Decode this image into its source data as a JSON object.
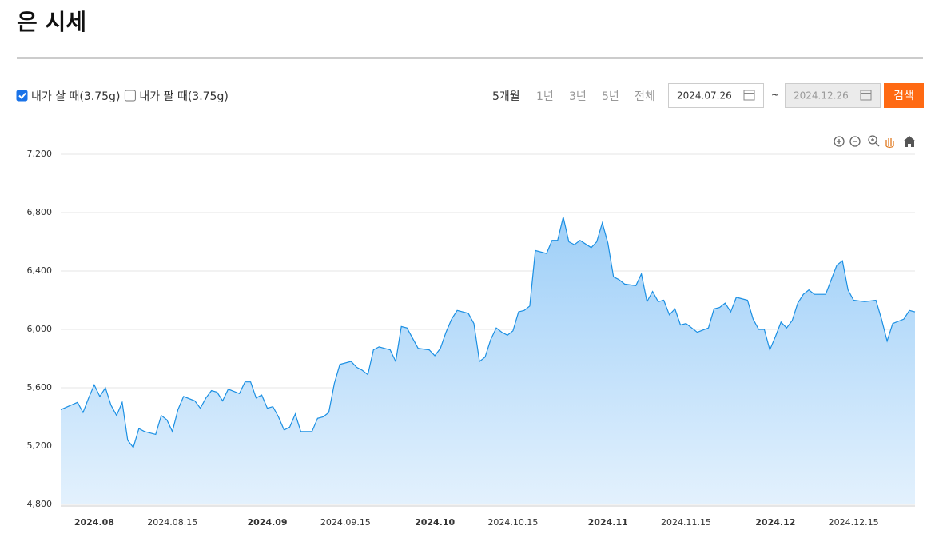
{
  "header": {
    "title": "은 시세"
  },
  "filters": [
    {
      "label": "내가 살 때(3.75g)",
      "checked": true
    },
    {
      "label": "내가 팔 때(3.75g)",
      "checked": false
    }
  ],
  "periods": [
    {
      "label": "5개월",
      "active": true
    },
    {
      "label": "1년",
      "active": false
    },
    {
      "label": "3년",
      "active": false
    },
    {
      "label": "5년",
      "active": false
    },
    {
      "label": "전체",
      "active": false
    }
  ],
  "date_range": {
    "from": "2024.07.26",
    "separator": "~",
    "to": "2024.12.26",
    "button": "검색"
  },
  "chart_data": {
    "type": "area",
    "grid": true,
    "xlim": [
      "2024.07.26",
      "2024.12.26"
    ],
    "xticks": [
      {
        "value": "2024.08.01",
        "label": "2024.08"
      },
      "2024.08.15",
      {
        "value": "2024.09.01",
        "label": "2024.09"
      },
      "2024.09.15",
      {
        "value": "2024.10.01",
        "label": "2024.10"
      },
      "2024.10.15",
      {
        "value": "2024.11.01",
        "label": "2024.11"
      },
      "2024.11.15",
      {
        "value": "2024.12.01",
        "label": "2024.12"
      },
      "2024.12.15"
    ],
    "ylim": [
      4800,
      7200
    ],
    "yticks": [
      {
        "value": 4800,
        "label": "4,800"
      },
      {
        "value": 5200,
        "label": "5,200"
      },
      {
        "value": 5600,
        "label": "5,600"
      },
      {
        "value": 6000,
        "label": "6,000"
      },
      {
        "value": 6400,
        "label": "6,400"
      },
      {
        "value": 6800,
        "label": "6,800"
      },
      {
        "value": 7200,
        "label": "7,200"
      }
    ],
    "x": [
      "2024.07.26",
      "2024.07.29",
      "2024.07.30",
      "2024.07.31",
      "2024.08.01",
      "2024.08.02",
      "2024.08.03",
      "2024.08.04",
      "2024.08.05",
      "2024.08.06",
      "2024.08.07",
      "2024.08.08",
      "2024.08.09",
      "2024.08.10",
      "2024.08.12",
      "2024.08.13",
      "2024.08.14",
      "2024.08.15",
      "2024.08.16",
      "2024.08.17",
      "2024.08.19",
      "2024.08.20",
      "2024.08.21",
      "2024.08.22",
      "2024.08.23",
      "2024.08.24",
      "2024.08.25",
      "2024.08.27",
      "2024.08.28",
      "2024.08.29",
      "2024.08.30",
      "2024.08.31",
      "2024.09.01",
      "2024.09.02",
      "2024.09.03",
      "2024.09.04",
      "2024.09.05",
      "2024.09.06",
      "2024.09.07",
      "2024.09.09",
      "2024.09.10",
      "2024.09.11",
      "2024.09.12",
      "2024.09.13",
      "2024.09.14",
      "2024.09.16",
      "2024.09.17",
      "2024.09.18",
      "2024.09.19",
      "2024.09.20",
      "2024.09.21",
      "2024.09.23",
      "2024.09.24",
      "2024.09.25",
      "2024.09.26",
      "2024.09.28",
      "2024.09.30",
      "2024.10.01",
      "2024.10.02",
      "2024.10.03",
      "2024.10.04",
      "2024.10.05",
      "2024.10.07",
      "2024.10.08",
      "2024.10.09",
      "2024.10.10",
      "2024.10.11",
      "2024.10.12",
      "2024.10.13",
      "2024.10.14",
      "2024.10.15",
      "2024.10.16",
      "2024.10.17",
      "2024.10.18",
      "2024.10.19",
      "2024.10.21",
      "2024.10.22",
      "2024.10.23",
      "2024.10.24",
      "2024.10.25",
      "2024.10.26",
      "2024.10.27",
      "2024.10.29",
      "2024.10.30",
      "2024.10.31",
      "2024.11.01",
      "2024.11.02",
      "2024.11.03",
      "2024.11.04",
      "2024.11.06",
      "2024.11.07",
      "2024.11.08",
      "2024.11.09",
      "2024.11.10",
      "2024.11.11",
      "2024.11.12",
      "2024.11.13",
      "2024.11.14",
      "2024.11.15",
      "2024.11.17",
      "2024.11.19",
      "2024.11.20",
      "2024.11.21",
      "2024.11.22",
      "2024.11.23",
      "2024.11.24",
      "2024.11.26",
      "2024.11.27",
      "2024.11.28",
      "2024.11.29",
      "2024.11.30",
      "2024.12.01",
      "2024.12.02",
      "2024.12.03",
      "2024.12.04",
      "2024.12.05",
      "2024.12.06",
      "2024.12.07",
      "2024.12.08",
      "2024.12.10",
      "2024.12.11",
      "2024.12.12",
      "2024.12.13",
      "2024.12.14",
      "2024.12.15",
      "2024.12.17",
      "2024.12.19",
      "2024.12.20",
      "2024.12.21",
      "2024.12.22",
      "2024.12.24",
      "2024.12.25",
      "2024.12.26"
    ],
    "series": [
      {
        "color": "#1a8fe3",
        "fill_top": "#9ecff8",
        "fill_bottom": "#e3f1fd",
        "values": [
          5450,
          5500,
          5430,
          5530,
          5620,
          5540,
          5600,
          5480,
          5410,
          5500,
          5240,
          5190,
          5320,
          5300,
          5280,
          5410,
          5380,
          5300,
          5450,
          5540,
          5510,
          5460,
          5530,
          5580,
          5570,
          5510,
          5590,
          5560,
          5640,
          5640,
          5530,
          5550,
          5460,
          5470,
          5400,
          5310,
          5330,
          5420,
          5300,
          5300,
          5390,
          5400,
          5430,
          5630,
          5760,
          5780,
          5740,
          5720,
          5690,
          5860,
          5880,
          5860,
          5780,
          6020,
          6010,
          5870,
          5860,
          5820,
          5870,
          5980,
          6070,
          6130,
          6110,
          6040,
          5780,
          5810,
          5930,
          6010,
          5980,
          5960,
          5990,
          6120,
          6130,
          6160,
          6540,
          6520,
          6610,
          6610,
          6770,
          6600,
          6580,
          6610,
          6560,
          6600,
          6730,
          6590,
          6360,
          6340,
          6310,
          6300,
          6380,
          6190,
          6260,
          6190,
          6200,
          6100,
          6140,
          6030,
          6040,
          5980,
          6010,
          6140,
          6150,
          6180,
          6120,
          6220,
          6200,
          6070,
          6000,
          6000,
          5860,
          5950,
          6050,
          6010,
          6060,
          6180,
          6240,
          6270,
          6240,
          6240,
          6340,
          6440,
          6470,
          6270,
          6200,
          6190,
          6200,
          6070,
          5920,
          6040,
          6070,
          6130,
          6120
        ]
      }
    ]
  }
}
